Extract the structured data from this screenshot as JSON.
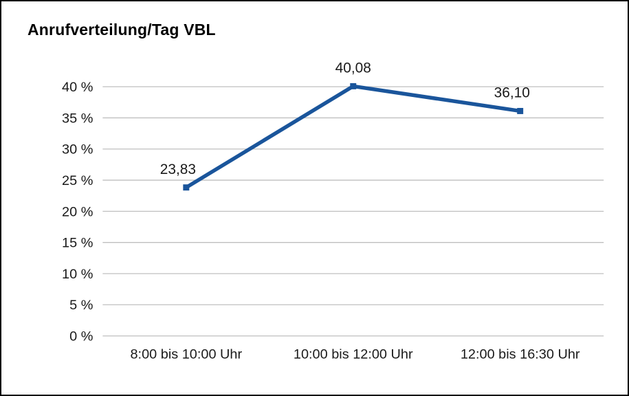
{
  "colors": {
    "line": "#1A559B",
    "grid": "#bfbfbf",
    "text": "#1a1a1a",
    "title": "#000000",
    "background": "#ffffff",
    "border": "#000000"
  },
  "chart_data": {
    "type": "line",
    "title": "Anrufverteilung/Tag VBL",
    "categories": [
      "8:00 bis 10:00 Uhr",
      "10:00 bis 12:00 Uhr",
      "12:00 bis 16:30 Uhr"
    ],
    "values": [
      23.83,
      40.08,
      36.1
    ],
    "value_labels": [
      "23,83",
      "40,08",
      "36,10"
    ],
    "ylim": [
      0,
      40
    ],
    "ytick_step": 5,
    "ytick_labels": [
      "0 %",
      "5 %",
      "10 %",
      "15 %",
      "20 %",
      "25 %",
      "30 %",
      "35 %",
      "40 %"
    ],
    "xlabel": "",
    "ylabel": "",
    "grid": "horizontal",
    "legend": "none"
  }
}
